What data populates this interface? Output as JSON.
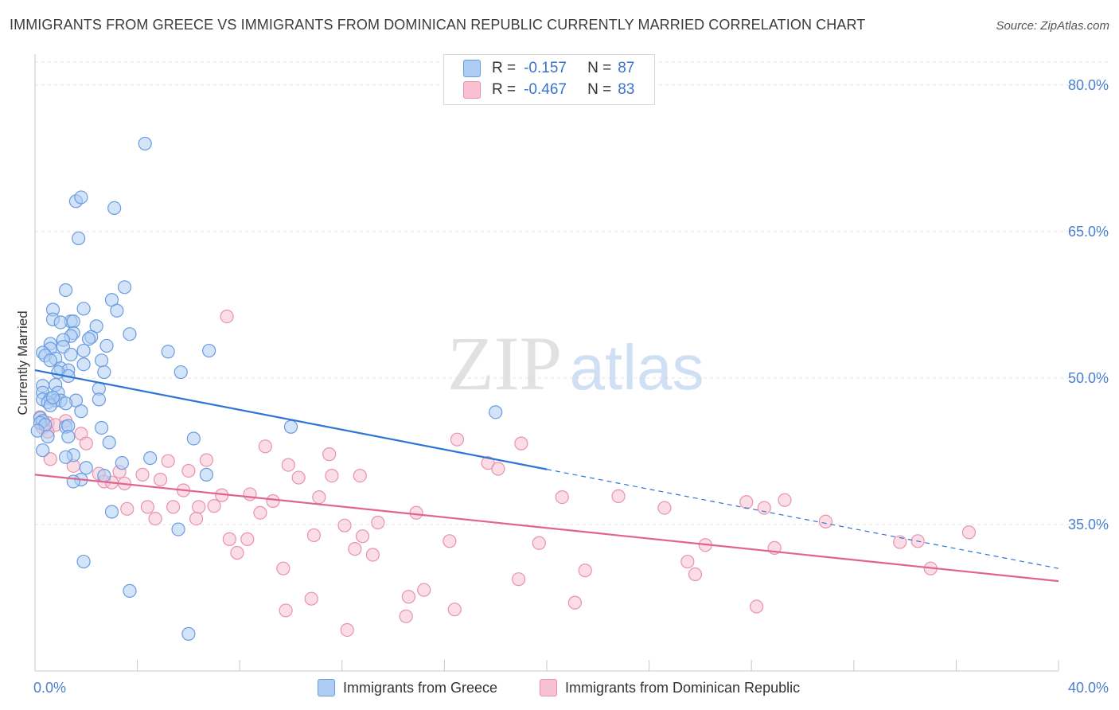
{
  "title": "IMMIGRANTS FROM GREECE VS IMMIGRANTS FROM DOMINICAN REPUBLIC CURRENTLY MARRIED CORRELATION CHART",
  "source": "Source: ZipAtlas.com",
  "watermark": {
    "zip": "ZIP",
    "atlas": "atlas"
  },
  "legend": {
    "rows": [
      {
        "r_label": "R =",
        "r_value": "-0.157",
        "n_label": "N =",
        "n_value": "87"
      },
      {
        "r_label": "R =",
        "r_value": "-0.467",
        "n_label": "N =",
        "n_value": "83"
      }
    ]
  },
  "colors": {
    "greece_fill": "#aecdf3",
    "greece_stroke": "#6a9be0",
    "greece_line": "#2e74d4",
    "dr_fill": "#f7c1d2",
    "dr_stroke": "#e892ae",
    "dr_line": "#e0648f",
    "tick_text": "#4a7fd0",
    "grid": "#e3e3e3"
  },
  "chart_data": {
    "type": "scatter",
    "title": "IMMIGRANTS FROM GREECE VS IMMIGRANTS FROM DOMINICAN REPUBLIC CURRENTLY MARRIED CORRELATION CHART",
    "xlabel": "",
    "ylabel": "Currently Married",
    "xlim": [
      0,
      40
    ],
    "ylim": [
      20,
      83
    ],
    "x_tick_labels": [
      "0.0%",
      "40.0%"
    ],
    "y_ticks": [
      35,
      50,
      65,
      80
    ],
    "y_tick_labels": [
      "35.0%",
      "50.0%",
      "65.0%",
      "80.0%"
    ],
    "grid": true,
    "legend_position": "top-center",
    "series": [
      {
        "name": "Immigrants from Greece",
        "r": -0.157,
        "n": 87,
        "trend": {
          "x0": 0,
          "y0": 50.8,
          "x_solid_end": 20,
          "x1": 40,
          "y1": 30.5
        },
        "points": [
          [
            4.3,
            74.0
          ],
          [
            1.6,
            68.1
          ],
          [
            1.8,
            68.5
          ],
          [
            3.1,
            67.4
          ],
          [
            1.7,
            64.3
          ],
          [
            3.5,
            59.3
          ],
          [
            1.2,
            59.0
          ],
          [
            3.0,
            58.0
          ],
          [
            1.9,
            57.1
          ],
          [
            0.7,
            57.0
          ],
          [
            3.2,
            56.9
          ],
          [
            0.7,
            56.0
          ],
          [
            1.4,
            55.8
          ],
          [
            1.5,
            55.8
          ],
          [
            1.0,
            55.7
          ],
          [
            2.4,
            55.3
          ],
          [
            1.5,
            54.6
          ],
          [
            3.7,
            54.5
          ],
          [
            1.4,
            54.3
          ],
          [
            2.2,
            54.2
          ],
          [
            2.1,
            54.0
          ],
          [
            1.1,
            53.9
          ],
          [
            0.6,
            53.5
          ],
          [
            2.8,
            53.3
          ],
          [
            1.1,
            53.2
          ],
          [
            0.6,
            53.0
          ],
          [
            1.9,
            52.8
          ],
          [
            5.2,
            52.7
          ],
          [
            6.8,
            52.8
          ],
          [
            0.3,
            52.6
          ],
          [
            0.4,
            52.3
          ],
          [
            1.4,
            52.4
          ],
          [
            0.8,
            52.0
          ],
          [
            0.6,
            51.8
          ],
          [
            2.6,
            51.8
          ],
          [
            1.9,
            51.4
          ],
          [
            1.0,
            51.0
          ],
          [
            1.3,
            50.8
          ],
          [
            2.7,
            50.6
          ],
          [
            0.9,
            50.6
          ],
          [
            5.7,
            50.6
          ],
          [
            1.3,
            50.2
          ],
          [
            0.8,
            49.3
          ],
          [
            0.3,
            49.2
          ],
          [
            2.5,
            48.9
          ],
          [
            0.3,
            48.5
          ],
          [
            0.9,
            48.5
          ],
          [
            0.3,
            47.8
          ],
          [
            0.6,
            47.9
          ],
          [
            0.8,
            47.7
          ],
          [
            1.0,
            47.7
          ],
          [
            1.6,
            47.7
          ],
          [
            2.5,
            47.8
          ],
          [
            0.5,
            47.5
          ],
          [
            1.2,
            47.4
          ],
          [
            0.6,
            47.2
          ],
          [
            1.8,
            46.6
          ],
          [
            18.0,
            46.5
          ],
          [
            0.2,
            45.9
          ],
          [
            0.3,
            45.6
          ],
          [
            0.2,
            45.4
          ],
          [
            0.4,
            45.2
          ],
          [
            1.2,
            45.0
          ],
          [
            1.3,
            45.1
          ],
          [
            10.0,
            45.0
          ],
          [
            2.6,
            44.9
          ],
          [
            0.1,
            44.6
          ],
          [
            1.3,
            44.0
          ],
          [
            6.2,
            43.8
          ],
          [
            2.9,
            43.4
          ],
          [
            0.3,
            42.6
          ],
          [
            1.5,
            42.1
          ],
          [
            1.2,
            41.9
          ],
          [
            4.5,
            41.8
          ],
          [
            3.4,
            41.3
          ],
          [
            2.0,
            40.8
          ],
          [
            6.7,
            40.1
          ],
          [
            2.7,
            40.0
          ],
          [
            1.8,
            39.6
          ],
          [
            1.5,
            39.4
          ],
          [
            3.0,
            36.3
          ],
          [
            5.6,
            34.5
          ],
          [
            1.9,
            31.2
          ],
          [
            3.7,
            28.2
          ],
          [
            6.0,
            23.8
          ],
          [
            0.5,
            44.0
          ],
          [
            0.7,
            48.0
          ]
        ]
      },
      {
        "name": "Immigrants from Dominican Republic",
        "r": -0.467,
        "n": 83,
        "trend": {
          "x0": 0,
          "y0": 40.1,
          "x_solid_end": 40,
          "x1": 40,
          "y1": 29.2
        },
        "points": [
          [
            7.5,
            56.3
          ],
          [
            0.2,
            46.0
          ],
          [
            1.2,
            45.6
          ],
          [
            0.5,
            45.4
          ],
          [
            0.8,
            45.2
          ],
          [
            0.3,
            44.9
          ],
          [
            0.5,
            44.5
          ],
          [
            1.8,
            44.3
          ],
          [
            16.5,
            43.7
          ],
          [
            19.0,
            43.3
          ],
          [
            2.0,
            43.3
          ],
          [
            9.0,
            43.0
          ],
          [
            11.5,
            42.2
          ],
          [
            0.6,
            41.7
          ],
          [
            6.7,
            41.6
          ],
          [
            5.2,
            41.5
          ],
          [
            17.7,
            41.3
          ],
          [
            9.9,
            41.1
          ],
          [
            1.5,
            41.0
          ],
          [
            18.1,
            40.7
          ],
          [
            6.0,
            40.5
          ],
          [
            3.3,
            40.4
          ],
          [
            2.5,
            40.2
          ],
          [
            4.2,
            40.1
          ],
          [
            11.6,
            40.0
          ],
          [
            12.7,
            40.0
          ],
          [
            10.3,
            39.8
          ],
          [
            4.9,
            39.6
          ],
          [
            2.7,
            39.4
          ],
          [
            3.0,
            39.3
          ],
          [
            3.5,
            39.2
          ],
          [
            5.8,
            38.5
          ],
          [
            7.3,
            38.0
          ],
          [
            8.4,
            38.1
          ],
          [
            11.1,
            37.8
          ],
          [
            20.6,
            37.8
          ],
          [
            22.8,
            37.9
          ],
          [
            9.3,
            37.4
          ],
          [
            27.8,
            37.3
          ],
          [
            29.3,
            37.5
          ],
          [
            4.4,
            36.8
          ],
          [
            5.4,
            36.8
          ],
          [
            6.4,
            36.8
          ],
          [
            24.6,
            36.7
          ],
          [
            28.5,
            36.7
          ],
          [
            3.6,
            36.6
          ],
          [
            7.0,
            36.9
          ],
          [
            8.8,
            36.2
          ],
          [
            14.9,
            36.2
          ],
          [
            4.7,
            35.6
          ],
          [
            6.3,
            35.6
          ],
          [
            13.4,
            35.2
          ],
          [
            30.9,
            35.3
          ],
          [
            12.1,
            34.9
          ],
          [
            10.9,
            33.9
          ],
          [
            12.8,
            33.8
          ],
          [
            7.6,
            33.5
          ],
          [
            8.3,
            33.5
          ],
          [
            16.2,
            33.3
          ],
          [
            19.7,
            33.1
          ],
          [
            34.5,
            33.3
          ],
          [
            36.5,
            34.2
          ],
          [
            33.8,
            33.2
          ],
          [
            26.2,
            32.9
          ],
          [
            12.5,
            32.5
          ],
          [
            7.9,
            32.1
          ],
          [
            13.2,
            31.9
          ],
          [
            28.9,
            32.6
          ],
          [
            25.5,
            31.2
          ],
          [
            9.7,
            30.5
          ],
          [
            21.5,
            30.3
          ],
          [
            25.8,
            29.9
          ],
          [
            35.0,
            30.5
          ],
          [
            18.9,
            29.4
          ],
          [
            15.2,
            28.3
          ],
          [
            10.8,
            27.4
          ],
          [
            14.6,
            27.6
          ],
          [
            21.1,
            27.0
          ],
          [
            9.8,
            26.2
          ],
          [
            16.4,
            26.3
          ],
          [
            28.2,
            26.6
          ],
          [
            14.5,
            25.6
          ],
          [
            12.2,
            24.2
          ]
        ]
      }
    ]
  }
}
